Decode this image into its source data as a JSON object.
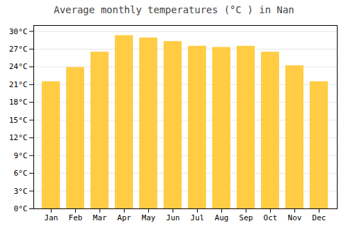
{
  "chart_data": {
    "type": "bar",
    "title": "Average monthly temperatures (°C ) in Nan",
    "categories": [
      "Jan",
      "Feb",
      "Mar",
      "Apr",
      "May",
      "Jun",
      "Jul",
      "Aug",
      "Sep",
      "Oct",
      "Nov",
      "Dec"
    ],
    "values": [
      21.5,
      23.9,
      26.5,
      29.3,
      28.9,
      28.3,
      27.5,
      27.3,
      27.5,
      26.5,
      24.2,
      21.5
    ],
    "color": "#FFCC44",
    "ylim": [
      0,
      31
    ],
    "yticks": [
      {
        "value": 0,
        "label": "0°C"
      },
      {
        "value": 3,
        "label": "3°C"
      },
      {
        "value": 6,
        "label": "6°C"
      },
      {
        "value": 9,
        "label": "9°C"
      },
      {
        "value": 12,
        "label": "12°C"
      },
      {
        "value": 15,
        "label": "15°C"
      },
      {
        "value": 18,
        "label": "18°C"
      },
      {
        "value": 21,
        "label": "21°C"
      },
      {
        "value": 24,
        "label": "24°C"
      },
      {
        "value": 27,
        "label": "27°C"
      },
      {
        "value": 30,
        "label": "30°C"
      }
    ],
    "grid": true
  }
}
